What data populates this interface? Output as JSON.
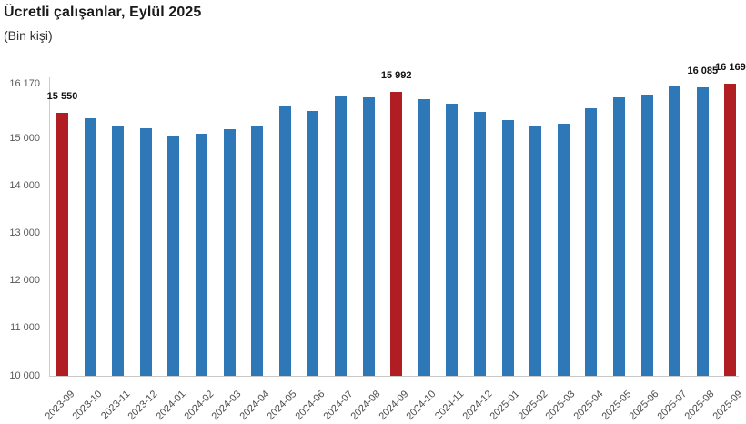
{
  "header": {
    "title": "Ücretli çalışanlar, Eylül 2025",
    "subtitle": "(Bin kişi)"
  },
  "colors": {
    "bar_default": "#2E78B8",
    "bar_highlight": "#B01E24",
    "axis_line": "#CCCCCC",
    "y_tick_text": "#595959",
    "x_tick_text": "#4D4D4D",
    "data_label_text": "#111111"
  },
  "chart_data": {
    "type": "bar",
    "title": "Ücretli çalışanlar, Eylül 2025",
    "subtitle": "(Bin kişi)",
    "xlabel": "",
    "ylabel": "",
    "grid": false,
    "legend": false,
    "ylim": [
      10000,
      16170
    ],
    "categories": [
      "2023-09",
      "2023-10",
      "2023-11",
      "2023-12",
      "2024-01",
      "2024-02",
      "2024-03",
      "2024-04",
      "2024-05",
      "2024-06",
      "2024-07",
      "2024-08",
      "2024-09",
      "2024-10",
      "2024-11",
      "2024-12",
      "2025-01",
      "2025-02",
      "2025-03",
      "2025-04",
      "2025-05",
      "2025-06",
      "2025-07",
      "2025-08",
      "2025-09"
    ],
    "values": [
      15550,
      15440,
      15290,
      15220,
      15050,
      15120,
      15210,
      15280,
      15690,
      15590,
      15900,
      15880,
      15992,
      15850,
      15740,
      15580,
      15400,
      15290,
      15330,
      15650,
      15890,
      15930,
      16120,
      16085,
      16169
    ],
    "highlighted_categories": [
      "2023-09",
      "2024-09",
      "2025-09"
    ],
    "data_labels": [
      {
        "category": "2023-09",
        "text": "15 550"
      },
      {
        "category": "2024-09",
        "text": "15 992"
      },
      {
        "category": "2025-08",
        "text": "16 085"
      },
      {
        "category": "2025-09",
        "text": "16 169"
      }
    ],
    "yticks": [
      {
        "value": 16170,
        "label": "16 170"
      },
      {
        "value": 15000,
        "label": "15 000"
      },
      {
        "value": 14000,
        "label": "14 000"
      },
      {
        "value": 13000,
        "label": "13 000"
      },
      {
        "value": 12000,
        "label": "12 000"
      },
      {
        "value": 11000,
        "label": "11 000"
      },
      {
        "value": 10000,
        "label": "10 000"
      }
    ]
  }
}
